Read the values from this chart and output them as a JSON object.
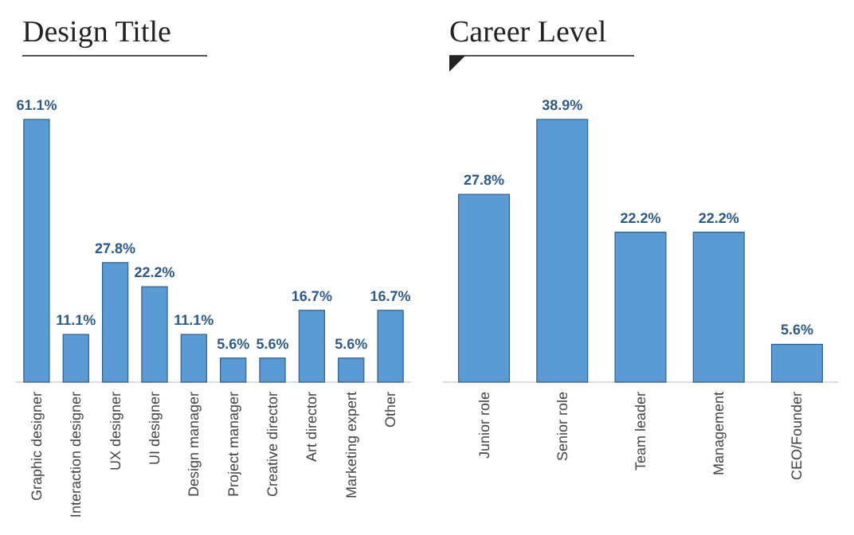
{
  "chart_data": [
    {
      "type": "bar",
      "title": "Design Title",
      "categories": [
        "Graphic designer",
        "Interaction designer",
        "UX designer",
        "UI designer",
        "Design manager",
        "Project manager",
        "Creative director",
        "Art director",
        "Marketing expert",
        "Other"
      ],
      "values": [
        61.1,
        11.1,
        27.8,
        22.2,
        11.1,
        5.6,
        5.6,
        16.7,
        5.6,
        16.7
      ],
      "value_labels": [
        "61.1%",
        "11.1%",
        "27.8%",
        "22.2%",
        "11.1%",
        "5.6%",
        "5.6%",
        "16.7%",
        "5.6%",
        "16.7%"
      ],
      "color": "#5b9bd5"
    },
    {
      "type": "bar",
      "title": "Career Level",
      "categories": [
        "Junior role",
        "Senior role",
        "Team leader",
        "Management",
        "CEO/Founder"
      ],
      "values": [
        27.8,
        38.9,
        22.2,
        22.2,
        5.6
      ],
      "value_labels": [
        "27.8%",
        "38.9%",
        "22.2%",
        "22.2%",
        "5.6%"
      ],
      "color": "#5b9bd5"
    }
  ]
}
